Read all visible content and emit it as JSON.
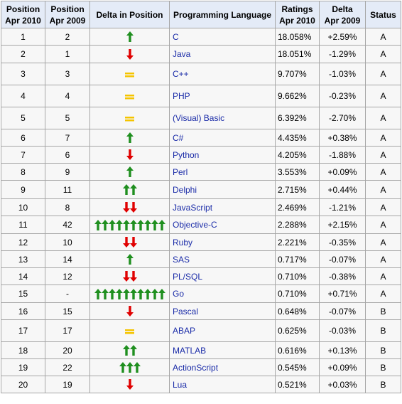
{
  "headers": {
    "pos2010": [
      "Position",
      "Apr 2010"
    ],
    "pos2009": [
      "Position",
      "Apr 2009"
    ],
    "delta_pos": "Delta in Position",
    "language": "Programming Language",
    "ratings": [
      "Ratings",
      "Apr 2010"
    ],
    "delta": [
      "Delta",
      "Apr 2009"
    ],
    "status": "Status"
  },
  "colors": {
    "up": "#1f8f1f",
    "down": "#e00000",
    "same": "#f5c400",
    "link": "#1b2ca8"
  },
  "rows": [
    {
      "pos2010": "1",
      "pos2009": "2",
      "ind": "up",
      "count": 1,
      "lang": "C",
      "rating": "18.058%",
      "delta": "+2.59%",
      "status": "A"
    },
    {
      "pos2010": "2",
      "pos2009": "1",
      "ind": "down",
      "count": 1,
      "lang": "Java",
      "rating": "18.051%",
      "delta": "-1.29%",
      "status": "A"
    },
    {
      "pos2010": "3",
      "pos2009": "3",
      "ind": "same",
      "count": 1,
      "lang": "C++",
      "rating": "9.707%",
      "delta": "-1.03%",
      "status": "A"
    },
    {
      "pos2010": "4",
      "pos2009": "4",
      "ind": "same",
      "count": 1,
      "lang": "PHP",
      "rating": "9.662%",
      "delta": "-0.23%",
      "status": "A"
    },
    {
      "pos2010": "5",
      "pos2009": "5",
      "ind": "same",
      "count": 1,
      "lang": "(Visual) Basic",
      "rating": "6.392%",
      "delta": "-2.70%",
      "status": "A"
    },
    {
      "pos2010": "6",
      "pos2009": "7",
      "ind": "up",
      "count": 1,
      "lang": "C#",
      "rating": "4.435%",
      "delta": "+0.38%",
      "status": "A"
    },
    {
      "pos2010": "7",
      "pos2009": "6",
      "ind": "down",
      "count": 1,
      "lang": "Python",
      "rating": "4.205%",
      "delta": "-1.88%",
      "status": "A"
    },
    {
      "pos2010": "8",
      "pos2009": "9",
      "ind": "up",
      "count": 1,
      "lang": "Perl",
      "rating": "3.553%",
      "delta": "+0.09%",
      "status": "A"
    },
    {
      "pos2010": "9",
      "pos2009": "11",
      "ind": "up",
      "count": 2,
      "lang": "Delphi",
      "rating": "2.715%",
      "delta": "+0.44%",
      "status": "A"
    },
    {
      "pos2010": "10",
      "pos2009": "8",
      "ind": "down",
      "count": 2,
      "lang": "JavaScript",
      "rating": "2.469%",
      "delta": "-1.21%",
      "status": "A"
    },
    {
      "pos2010": "11",
      "pos2009": "42",
      "ind": "up",
      "count": 10,
      "lang": "Objective-C",
      "rating": "2.288%",
      "delta": "+2.15%",
      "status": "A"
    },
    {
      "pos2010": "12",
      "pos2009": "10",
      "ind": "down",
      "count": 2,
      "lang": "Ruby",
      "rating": "2.221%",
      "delta": "-0.35%",
      "status": "A"
    },
    {
      "pos2010": "13",
      "pos2009": "14",
      "ind": "up",
      "count": 1,
      "lang": "SAS",
      "rating": "0.717%",
      "delta": "-0.07%",
      "status": "A"
    },
    {
      "pos2010": "14",
      "pos2009": "12",
      "ind": "down",
      "count": 2,
      "lang": "PL/SQL",
      "rating": "0.710%",
      "delta": "-0.38%",
      "status": "A"
    },
    {
      "pos2010": "15",
      "pos2009": "-",
      "ind": "up",
      "count": 10,
      "lang": "Go",
      "rating": "0.710%",
      "delta": "+0.71%",
      "status": "A"
    },
    {
      "pos2010": "16",
      "pos2009": "15",
      "ind": "down",
      "count": 1,
      "lang": "Pascal",
      "rating": "0.648%",
      "delta": "-0.07%",
      "status": "B"
    },
    {
      "pos2010": "17",
      "pos2009": "17",
      "ind": "same",
      "count": 1,
      "lang": "ABAP",
      "rating": "0.625%",
      "delta": "-0.03%",
      "status": "B"
    },
    {
      "pos2010": "18",
      "pos2009": "20",
      "ind": "up",
      "count": 2,
      "lang": "MATLAB",
      "rating": "0.616%",
      "delta": "+0.13%",
      "status": "B"
    },
    {
      "pos2010": "19",
      "pos2009": "22",
      "ind": "up",
      "count": 3,
      "lang": "ActionScript",
      "rating": "0.545%",
      "delta": "+0.09%",
      "status": "B"
    },
    {
      "pos2010": "20",
      "pos2009": "19",
      "ind": "down",
      "count": 1,
      "lang": "Lua",
      "rating": "0.521%",
      "delta": "+0.03%",
      "status": "B"
    }
  ]
}
